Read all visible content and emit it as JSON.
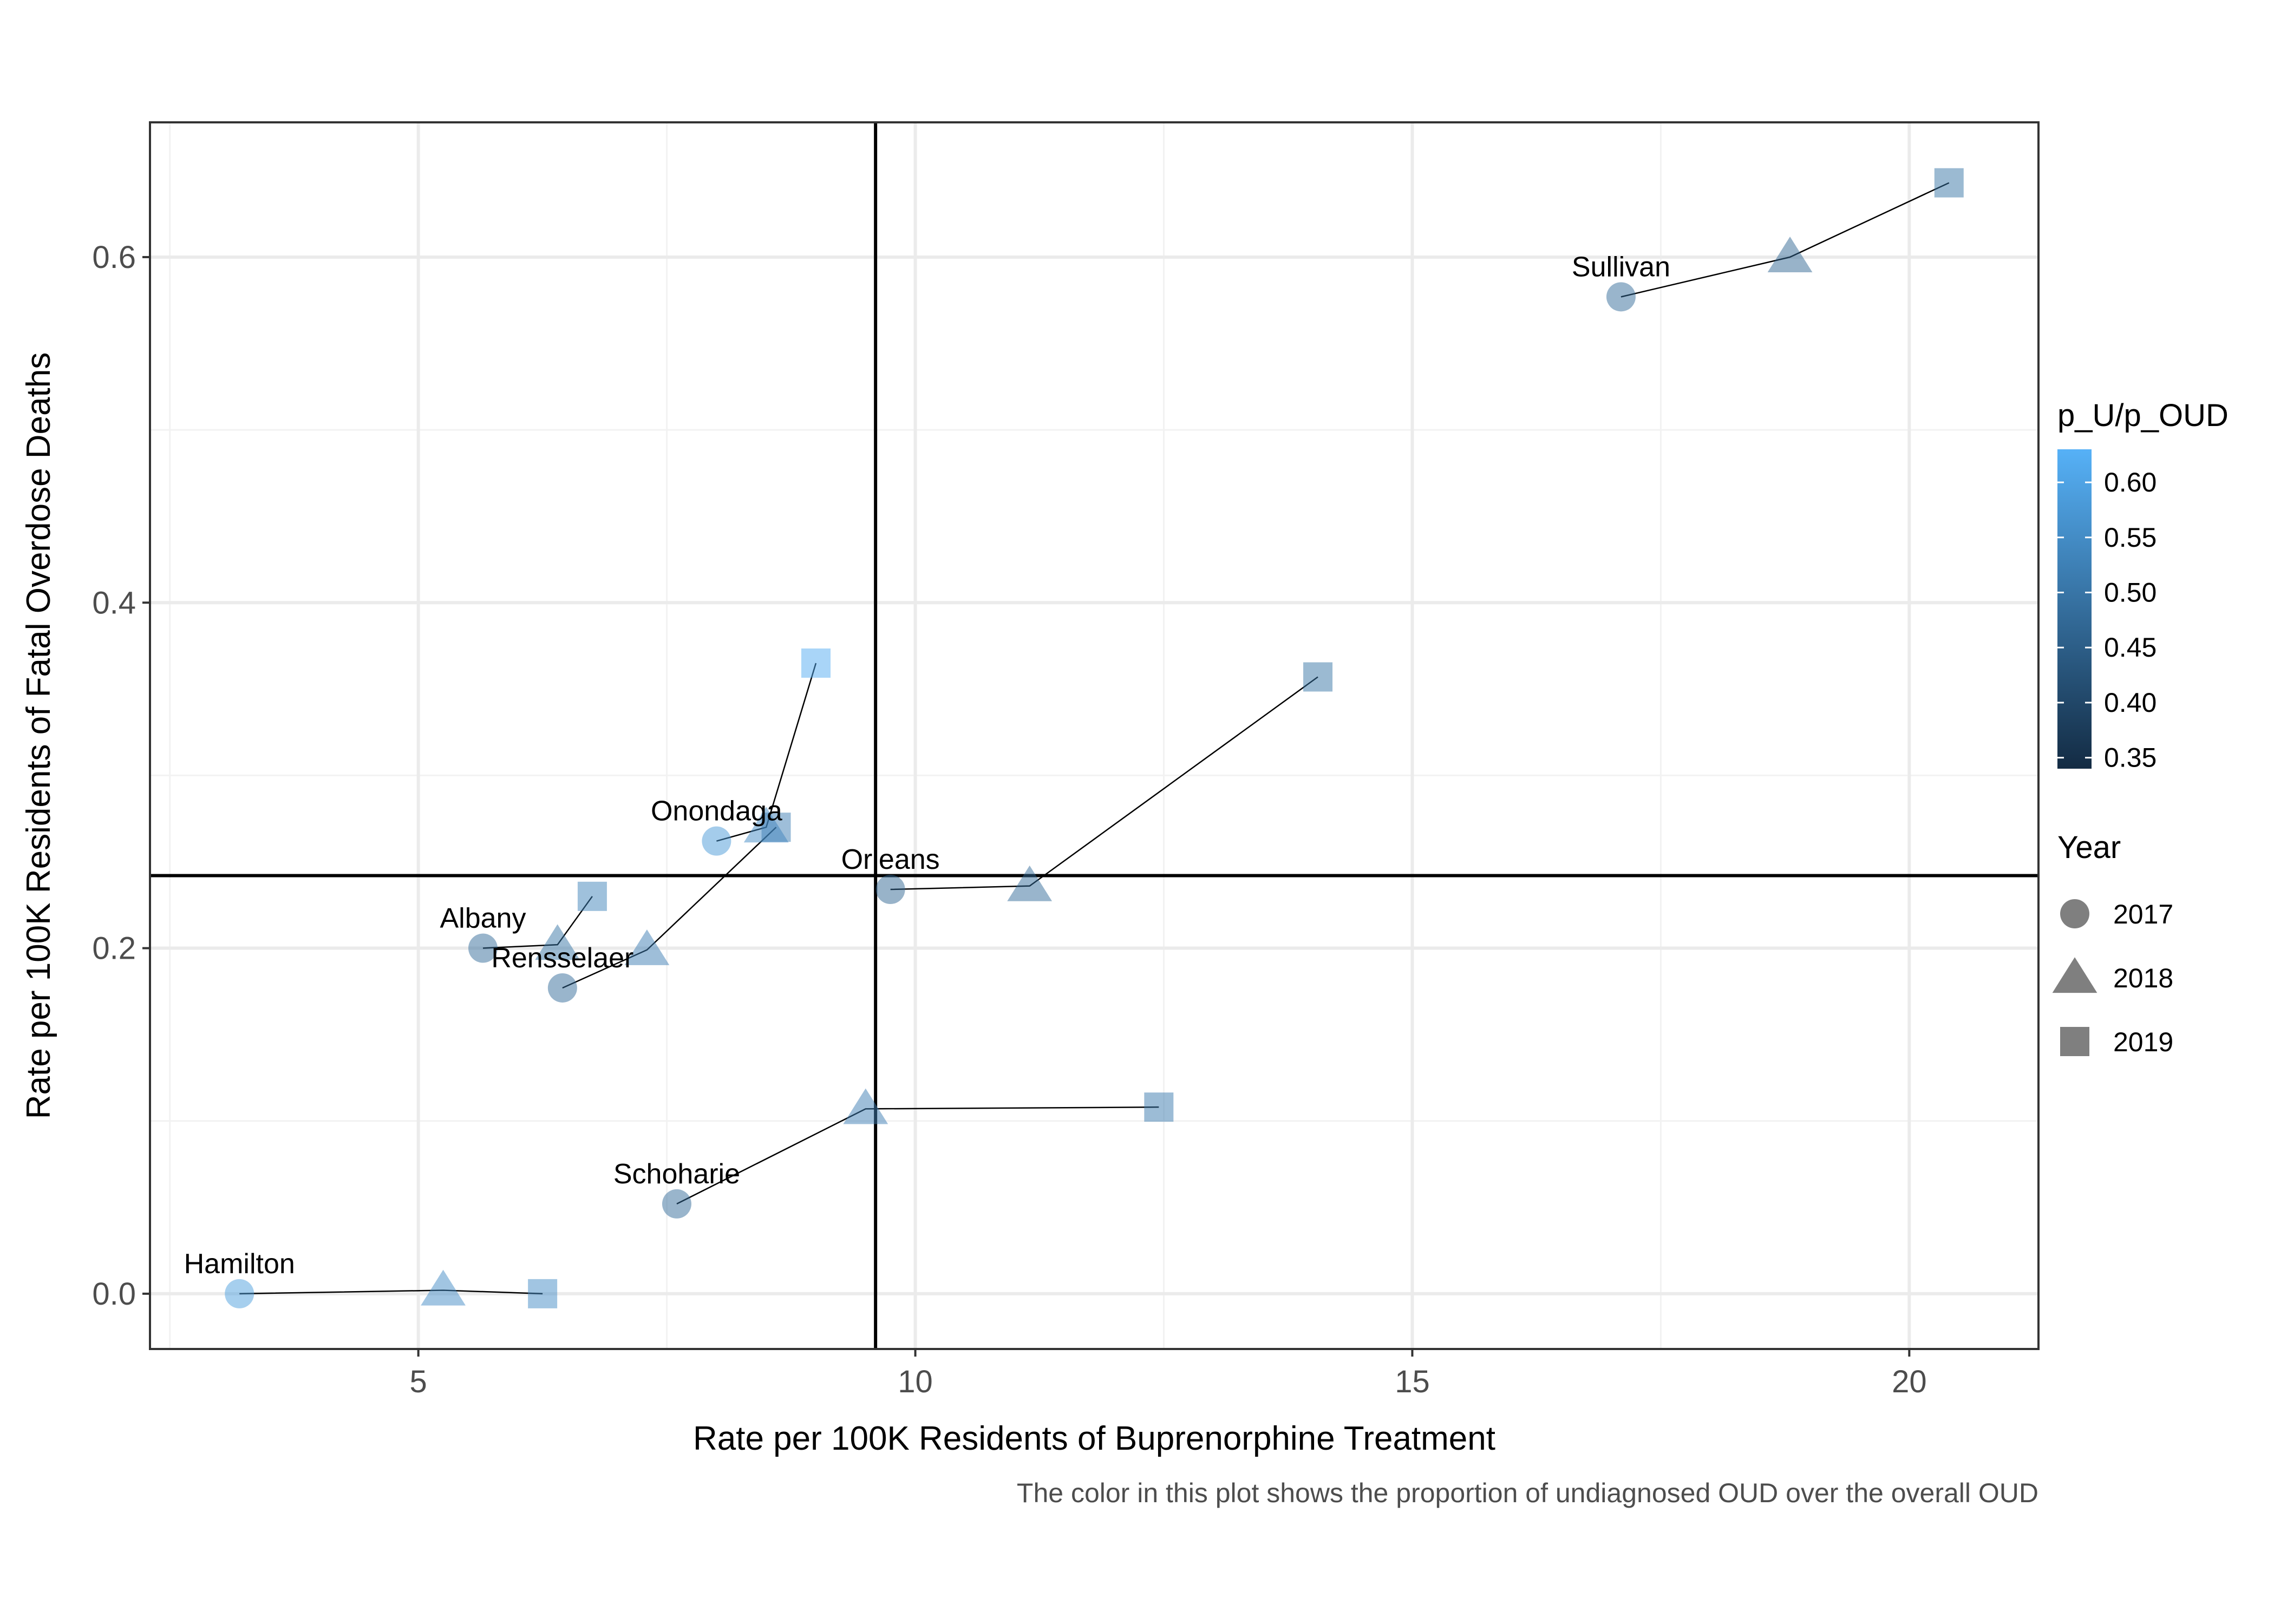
{
  "chart_data": {
    "type": "scatter",
    "xlabel": "Rate per 100K Residents of Buprenorphine Treatment",
    "ylabel": "Rate per 100K Residents of Fatal Overdose Deaths",
    "caption": "The color in this plot shows the proportion of undiagnosed OUD over the overall OUD",
    "xlim": [
      2.3,
      21.3
    ],
    "ylim": [
      -0.032,
      0.678
    ],
    "x_ticks": [
      5,
      10,
      15,
      20
    ],
    "x_tick_labels": [
      "5",
      "10",
      "15",
      "20"
    ],
    "y_ticks": [
      0.0,
      0.2,
      0.4,
      0.6
    ],
    "y_tick_labels": [
      "0.0",
      "0.2",
      "0.4",
      "0.6"
    ],
    "grid": true,
    "reference_lines": {
      "vertical_x": 9.6,
      "horizontal_y": 0.242
    },
    "color_legend": {
      "title": "p_U/p_OUD",
      "min": 0.34,
      "max": 0.63,
      "ticks": [
        0.35,
        0.4,
        0.45,
        0.5,
        0.55,
        0.6
      ],
      "tick_labels": [
        "0.35",
        "0.40",
        "0.45",
        "0.50",
        "0.55",
        "0.60"
      ],
      "low_color": "#132b43",
      "high_color": "#56b1f7"
    },
    "shape_legend": {
      "title": "Year",
      "entries": [
        {
          "label": "2017",
          "shape": "circle"
        },
        {
          "label": "2018",
          "shape": "triangle"
        },
        {
          "label": "2019",
          "shape": "square"
        }
      ]
    },
    "counties": [
      {
        "name": "Sullivan",
        "points": [
          {
            "year": 2017,
            "x": 17.1,
            "y": 0.577,
            "p": 0.48
          },
          {
            "year": 2018,
            "x": 18.8,
            "y": 0.6,
            "p": 0.47
          },
          {
            "year": 2019,
            "x": 20.4,
            "y": 0.643,
            "p": 0.5
          }
        ]
      },
      {
        "name": "Onondaga",
        "points": [
          {
            "year": 2017,
            "x": 8.0,
            "y": 0.262,
            "p": 0.58
          },
          {
            "year": 2018,
            "x": 8.5,
            "y": 0.27,
            "p": 0.55
          },
          {
            "year": 2019,
            "x": 9.0,
            "y": 0.365,
            "p": 0.62
          }
        ]
      },
      {
        "name": "Orleans",
        "points": [
          {
            "year": 2017,
            "x": 9.75,
            "y": 0.234,
            "p": 0.47
          },
          {
            "year": 2018,
            "x": 11.15,
            "y": 0.236,
            "p": 0.48
          },
          {
            "year": 2019,
            "x": 14.05,
            "y": 0.357,
            "p": 0.5
          }
        ]
      },
      {
        "name": "Albany",
        "points": [
          {
            "year": 2017,
            "x": 5.65,
            "y": 0.2,
            "p": 0.48
          },
          {
            "year": 2018,
            "x": 6.4,
            "y": 0.202,
            "p": 0.5
          },
          {
            "year": 2019,
            "x": 6.75,
            "y": 0.23,
            "p": 0.53
          }
        ]
      },
      {
        "name": "Rensselaer",
        "points": [
          {
            "year": 2017,
            "x": 6.45,
            "y": 0.177,
            "p": 0.48
          },
          {
            "year": 2018,
            "x": 7.3,
            "y": 0.199,
            "p": 0.52
          },
          {
            "year": 2019,
            "x": 8.6,
            "y": 0.27,
            "p": 0.52
          }
        ]
      },
      {
        "name": "Schoharie",
        "points": [
          {
            "year": 2017,
            "x": 7.6,
            "y": 0.052,
            "p": 0.48
          },
          {
            "year": 2018,
            "x": 9.5,
            "y": 0.107,
            "p": 0.52
          },
          {
            "year": 2019,
            "x": 12.45,
            "y": 0.108,
            "p": 0.51
          }
        ]
      },
      {
        "name": "Hamilton",
        "points": [
          {
            "year": 2017,
            "x": 3.2,
            "y": 0.0,
            "p": 0.59
          },
          {
            "year": 2018,
            "x": 5.25,
            "y": 0.002,
            "p": 0.55
          },
          {
            "year": 2019,
            "x": 6.25,
            "y": 0.0,
            "p": 0.55
          }
        ]
      }
    ]
  }
}
